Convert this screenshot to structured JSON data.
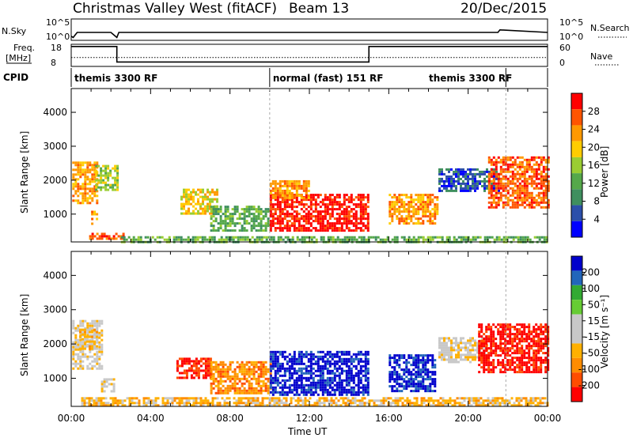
{
  "header": {
    "station": "Christmas Valley West (fitACF)",
    "beam": "Beam 13",
    "date": "20/Dec/2015"
  },
  "noise_panel": {
    "left_label": "N.Sky",
    "right_label": "N.Search",
    "left_ticks": [
      "10^5",
      "10^0"
    ],
    "right_ticks": [
      "10^5",
      "10^0"
    ]
  },
  "freq_panel": {
    "left_label_line1": "Freq.",
    "left_label_line2": "[MHz]",
    "right_label": "Nave",
    "left_ticks": [
      "18",
      "8"
    ],
    "right_ticks": [
      "60",
      "0"
    ]
  },
  "cpid_panel": {
    "label": "CPID",
    "segments": [
      {
        "text": "themis 3300 RF",
        "start_h": 0,
        "end_h": 10
      },
      {
        "text": "normal (fast) 151 RF",
        "start_h": 10,
        "end_h": 21.9
      },
      {
        "text": "themis 3300 RF",
        "start_h": 21.9,
        "end_h": 24
      }
    ]
  },
  "colors": {
    "power": [
      "#0000ff",
      "#2c4faa",
      "#3f8f5f",
      "#55a84a",
      "#9acd32",
      "#ffcc00",
      "#ff9900",
      "#ff5500",
      "#ff0000"
    ],
    "velocity": [
      "#ff0000",
      "#ff4d00",
      "#ff8c00",
      "#ffb000",
      "#c8c8c8",
      "#c8c8c8",
      "#66cc33",
      "#33aa33",
      "#2266bb",
      "#0000cc"
    ]
  },
  "chart_data": [
    {
      "type": "line",
      "name": "noise",
      "x": [
        0,
        0.1,
        0.3,
        1,
        2,
        2.3,
        2.4,
        3,
        6,
        9,
        12,
        15,
        18,
        21.5,
        21.6,
        24
      ],
      "y": [
        2,
        1,
        5,
        5,
        5,
        1,
        5,
        5,
        5,
        5,
        5,
        5,
        5,
        5,
        7,
        5
      ],
      "xlim": [
        0,
        24
      ]
    },
    {
      "type": "line",
      "name": "frequency",
      "x": [
        0,
        2.3,
        2.3,
        3,
        3,
        15,
        15,
        24
      ],
      "y": [
        17,
        17,
        10,
        10,
        10,
        10,
        17,
        17
      ],
      "nave_dotted": 12,
      "ylim": [
        8,
        18
      ],
      "xlim": [
        0,
        24
      ]
    },
    {
      "type": "heatmap",
      "name": "power",
      "xlabel": "",
      "ylabel": "Slant Range [km]",
      "xlim": [
        0,
        24
      ],
      "ylim": [
        180,
        4700
      ],
      "yticks": [
        1000,
        2000,
        3000,
        4000
      ],
      "colorbar_label": "Power [dB]",
      "colorbar_ticks": [
        "28",
        "24",
        "20",
        "16",
        "12",
        "8",
        "4"
      ],
      "regions": [
        {
          "x0": 0.05,
          "x1": 1.3,
          "y0": 1350,
          "y1": 2550,
          "level": 6
        },
        {
          "x0": 1.2,
          "x1": 2.3,
          "y0": 1750,
          "y1": 2450,
          "level": 4
        },
        {
          "x0": 1.0,
          "x1": 1.3,
          "y0": 700,
          "y1": 1100,
          "level": 6
        },
        {
          "x0": 0.9,
          "x1": 2.6,
          "y0": 250,
          "y1": 450,
          "level": 7
        },
        {
          "x0": 5.5,
          "x1": 7.3,
          "y0": 1050,
          "y1": 1750,
          "level": 5
        },
        {
          "x0": 7.0,
          "x1": 10.0,
          "y0": 500,
          "y1": 1250,
          "level": 3
        },
        {
          "x0": 10.0,
          "x1": 15.0,
          "y0": 500,
          "y1": 1600,
          "level": 8
        },
        {
          "x0": 10.0,
          "x1": 12.0,
          "y0": 1500,
          "y1": 2000,
          "level": 6
        },
        {
          "x0": 16.0,
          "x1": 18.4,
          "y0": 700,
          "y1": 1600,
          "level": 6
        },
        {
          "x0": 18.5,
          "x1": 21.5,
          "y0": 1700,
          "y1": 2350,
          "level": 1
        },
        {
          "x0": 21.0,
          "x1": 24.0,
          "y0": 1200,
          "y1": 2700,
          "level": 7
        },
        {
          "x0": 2.5,
          "x1": 24.0,
          "y0": 200,
          "y1": 350,
          "level": 3
        }
      ]
    },
    {
      "type": "heatmap",
      "name": "velocity",
      "xlabel": "Time UT",
      "ylabel": "Slant Range [km]",
      "xlim": [
        0,
        24
      ],
      "ylim": [
        180,
        4700
      ],
      "yticks": [
        1000,
        2000,
        3000,
        4000
      ],
      "xticks": [
        "00:00",
        "04:00",
        "08:00",
        "12:00",
        "16:00",
        "20:00",
        "00:00"
      ],
      "colorbar_label": "Velocity [m s⁻¹]",
      "colorbar_ticks": [
        "200",
        "100",
        "50",
        "15",
        "-15",
        "-50",
        "-100",
        "-200"
      ],
      "regions": [
        {
          "x0": 0.05,
          "x1": 1.6,
          "y0": 1300,
          "y1": 2700,
          "level": 4
        },
        {
          "x0": 0.4,
          "x1": 1.3,
          "y0": 1850,
          "y1": 2450,
          "level": 3
        },
        {
          "x0": 1.5,
          "x1": 2.1,
          "y0": 600,
          "y1": 1000,
          "level": 4
        },
        {
          "x0": 5.3,
          "x1": 7.0,
          "y0": 1000,
          "y1": 1600,
          "level": 0
        },
        {
          "x0": 7.0,
          "x1": 10.0,
          "y0": 550,
          "y1": 1500,
          "level": 2
        },
        {
          "x0": 10.0,
          "x1": 15.0,
          "y0": 500,
          "y1": 1800,
          "level": 9
        },
        {
          "x0": 16.0,
          "x1": 18.3,
          "y0": 600,
          "y1": 1700,
          "level": 9
        },
        {
          "x0": 18.5,
          "x1": 21.0,
          "y0": 1500,
          "y1": 2200,
          "level": 4
        },
        {
          "x0": 20.5,
          "x1": 24.0,
          "y0": 1200,
          "y1": 2600,
          "level": 0
        },
        {
          "x0": 0.5,
          "x1": 24.0,
          "y0": 200,
          "y1": 450,
          "level": 3
        }
      ]
    }
  ]
}
